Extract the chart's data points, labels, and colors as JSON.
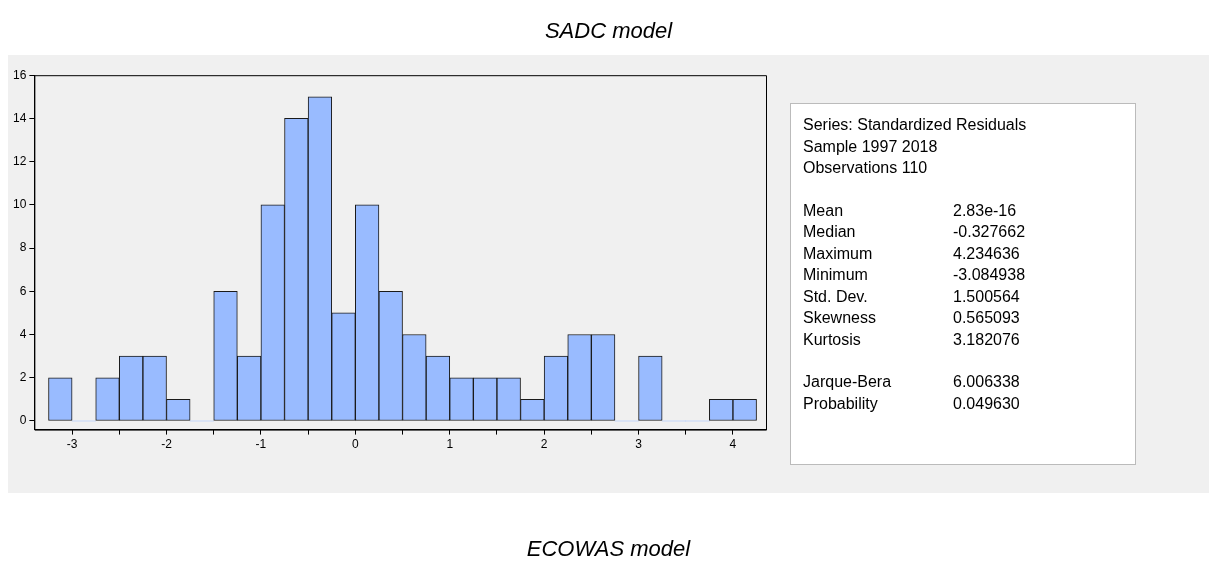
{
  "chart_data": {
    "type": "histogram",
    "title": "SADC model",
    "bins": [
      -3.25,
      -3,
      -2.75,
      -2.5,
      -2.25,
      -2,
      -1.75,
      -1.5,
      -1.25,
      -1,
      -0.75,
      -0.5,
      -0.25,
      0,
      0.25,
      0.5,
      0.75,
      1,
      1.25,
      1.5,
      1.75,
      2,
      2.25,
      2.5,
      2.75,
      3,
      3.25,
      3.5,
      3.75,
      4,
      4.25
    ],
    "values": [
      2,
      0,
      2,
      3,
      3,
      1,
      0,
      6,
      3,
      10,
      14,
      15,
      5,
      10,
      6,
      4,
      3,
      2,
      2,
      2,
      1,
      3,
      4,
      4,
      0,
      3,
      0,
      0,
      1,
      1
    ],
    "color": "#99bbff",
    "xlim": [
      -3.4,
      4.35
    ],
    "xticks": [
      -3,
      {
        "value": -2.5,
        "label": null
      },
      -2,
      {
        "value": -1.5,
        "label": null
      },
      -1,
      {
        "value": -0.5,
        "label": null
      },
      0,
      {
        "value": 0.5,
        "label": null
      },
      1,
      {
        "value": 1.5,
        "label": null
      },
      2,
      {
        "value": 2.5,
        "label": null
      },
      3,
      {
        "value": 3.5,
        "label": null
      },
      4
    ],
    "ylim": [
      -0.4,
      16
    ],
    "yticks": [
      0,
      2,
      4,
      6,
      8,
      10,
      12,
      14,
      16
    ],
    "grid": false,
    "legend": false,
    "annotations": [
      "Series: Standardized Residuals",
      "Sample 1997 2018",
      "Observations 110",
      "Mean  2.83e-16",
      "Median  -0.327662",
      "Maximum  4.234636",
      "Minimum  -3.084938",
      "Std. Dev.  1.500564",
      "Skewness  0.565093",
      "Kurtosis  3.182076",
      "Jarque-Bera  6.006338",
      "Probability  0.049630",
      "ECOWAS model"
    ]
  }
}
